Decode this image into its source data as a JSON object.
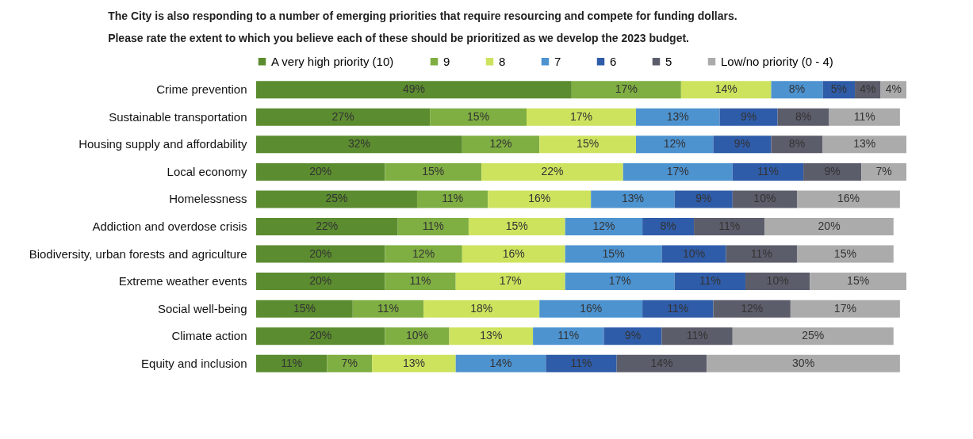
{
  "chart_data": {
    "type": "bar",
    "orientation": "horizontal",
    "stacked": true,
    "title": "The City is also responding to a number of emerging priorities that require resourcing and compete for funding dollars.",
    "subtitle": "Please rate the extent to which you believe each of these should be prioritized as we develop the 2023 budget.",
    "legend": "top",
    "categories": [
      "Crime prevention",
      "Sustainable transportation",
      "Housing supply and affordability",
      "Local economy",
      "Homelessness",
      "Addiction and overdose crisis",
      "Biodiversity, urban forests and agriculture",
      "Extreme weather events",
      "Social well-being",
      "Climate action",
      "Equity and inclusion"
    ],
    "series": [
      {
        "name": "A very high priority (10)",
        "color": "#5b8c2f",
        "values": [
          49,
          27,
          32,
          20,
          25,
          22,
          20,
          20,
          15,
          20,
          11
        ],
        "value_labels": [
          "49%",
          "27%",
          "32%",
          "20%",
          "25%",
          "22%",
          "20%",
          "20%",
          "15%",
          "20%",
          "11%"
        ]
      },
      {
        "name": "9",
        "color": "#7fae42",
        "values": [
          17,
          15,
          12,
          15,
          11,
          11,
          12,
          11,
          11,
          10,
          7
        ],
        "value_labels": [
          "17%",
          "15%",
          "12%",
          "15%",
          "11%",
          "11%",
          "12%",
          "11%",
          "11%",
          "10%",
          "7%"
        ]
      },
      {
        "name": "8",
        "color": "#cde35e",
        "values": [
          14,
          17,
          15,
          22,
          16,
          15,
          16,
          17,
          18,
          13,
          13
        ],
        "value_labels": [
          "14%",
          "17%",
          "15%",
          "22%",
          "16%",
          "15%",
          "16%",
          "17%",
          "18%",
          "13%",
          "13%"
        ]
      },
      {
        "name": "7",
        "color": "#4d93d0",
        "values": [
          8,
          13,
          12,
          17,
          13,
          12,
          15,
          17,
          16,
          11,
          14
        ],
        "value_labels": [
          "8%",
          "13%",
          "12%",
          "17%",
          "13%",
          "12%",
          "15%",
          "17%",
          "16%",
          "11%",
          "14%"
        ]
      },
      {
        "name": "6",
        "color": "#2f5ca8",
        "values": [
          5,
          9,
          9,
          11,
          9,
          8,
          10,
          11,
          11,
          9,
          11
        ],
        "value_labels": [
          "5%",
          "9%",
          "9%",
          "11%",
          "9%",
          "8%",
          "10%",
          "11%",
          "11%",
          "9%",
          "11%"
        ]
      },
      {
        "name": "5",
        "color": "#5c5d6b",
        "values": [
          4,
          8,
          8,
          9,
          10,
          11,
          11,
          10,
          12,
          11,
          14
        ],
        "value_labels": [
          "4%",
          "8%",
          "8%",
          "9%",
          "10%",
          "11%",
          "11%",
          "10%",
          "12%",
          "11%",
          "14%"
        ]
      },
      {
        "name": "Low/no priority (0 - 4)",
        "color": "#ababab",
        "values": [
          4,
          11,
          13,
          7,
          16,
          20,
          15,
          15,
          17,
          25,
          30
        ],
        "value_labels": [
          "4%",
          "11%",
          "13%",
          "7%",
          "16%",
          "20%",
          "15%",
          "15%",
          "17%",
          "25%",
          "30%"
        ]
      }
    ]
  }
}
